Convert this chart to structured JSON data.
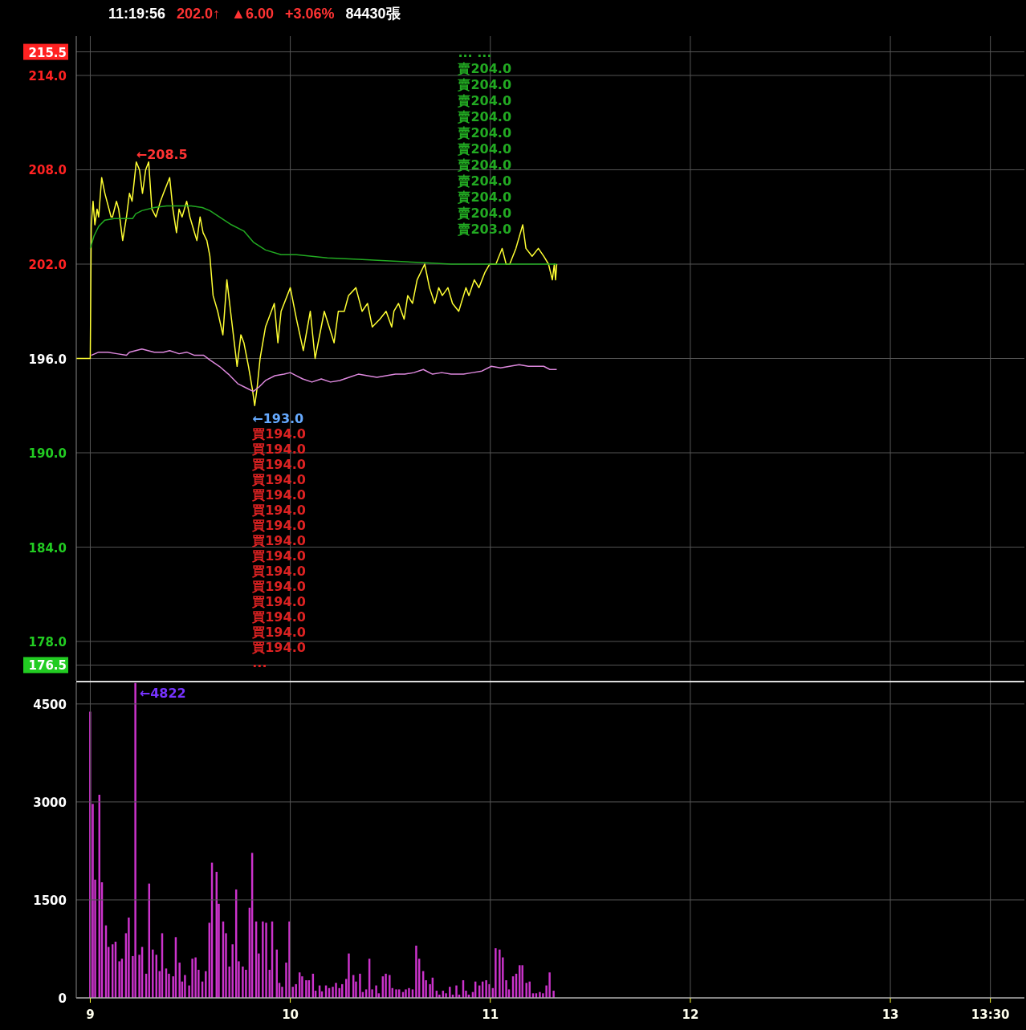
{
  "chart_data": [
    {
      "type": "line",
      "title": "11:19:56  202.0↑  ▲6.00  +3.06%  84430張",
      "xlim": [
        8.93,
        13.67
      ],
      "xticks": [
        9,
        10,
        11,
        12,
        13,
        {
          "value": 13.5,
          "label": null
        }
      ],
      "ylim": [
        175.5,
        216.5
      ],
      "yticks": [
        {
          "value": 176.5,
          "label": "176.5"
        },
        {
          "value": 178,
          "label": "178.0"
        },
        {
          "value": 184,
          "label": "184.0"
        },
        {
          "value": 190,
          "label": "190.0"
        },
        {
          "value": 196,
          "label": "196.0"
        },
        {
          "value": 202,
          "label": "202.0"
        },
        {
          "value": 208,
          "label": "208.0"
        },
        {
          "value": 214,
          "label": "214.0"
        },
        {
          "value": 215.5,
          "label": "215.5"
        }
      ],
      "tick_labels": "y",
      "grid": true,
      "series": [
        {
          "color": "#ffff33",
          "x": [
            8.93,
            9.0,
            9.005,
            9.014,
            9.023,
            9.034,
            9.042,
            9.057,
            9.073,
            9.104,
            9.111,
            9.131,
            9.142,
            9.162,
            9.181,
            9.196,
            9.209,
            9.23,
            9.246,
            9.261,
            9.277,
            9.292,
            9.308,
            9.328,
            9.351,
            9.366,
            9.397,
            9.413,
            9.431,
            9.444,
            9.459,
            9.482,
            9.498,
            9.521,
            9.533,
            9.549,
            9.564,
            9.583,
            9.598,
            9.614,
            9.637,
            9.663,
            9.683,
            9.706,
            9.734,
            9.753,
            9.768,
            9.791,
            9.811,
            9.822,
            9.833,
            9.849,
            9.876,
            9.92,
            9.938,
            9.954,
            10.0,
            10.031,
            10.065,
            10.1,
            10.124,
            10.17,
            10.219,
            10.24,
            10.27,
            10.291,
            10.328,
            10.359,
            10.386,
            10.41,
            10.448,
            10.479,
            10.507,
            10.518,
            10.541,
            10.569,
            10.587,
            10.611,
            10.634,
            10.672,
            10.696,
            10.722,
            10.742,
            10.76,
            10.788,
            10.811,
            10.842,
            10.878,
            10.893,
            10.92,
            10.943,
            10.974,
            10.997,
            11.028,
            11.059,
            11.079,
            11.097,
            11.128,
            11.162,
            11.178,
            11.209,
            11.24,
            11.267,
            11.291,
            11.31,
            11.32,
            11.326,
            11.332
          ],
          "values": [
            196.0,
            196.0,
            204.5,
            206.0,
            204.5,
            205.5,
            205.0,
            207.5,
            206.5,
            205.0,
            205.0,
            206.0,
            205.5,
            203.5,
            205.0,
            206.5,
            206.0,
            208.5,
            208.0,
            206.5,
            208.0,
            208.5,
            205.5,
            205.0,
            206.0,
            206.5,
            207.5,
            205.5,
            204.0,
            205.5,
            205.0,
            206.0,
            205.0,
            204.0,
            203.5,
            205.0,
            204.0,
            203.5,
            202.5,
            200.0,
            199.0,
            197.5,
            201.0,
            198.5,
            195.5,
            197.5,
            197.0,
            195.5,
            194.0,
            193.0,
            194.0,
            196.0,
            198.0,
            199.5,
            197.0,
            199.0,
            200.5,
            198.5,
            196.5,
            199.0,
            196.0,
            199.0,
            197.0,
            199.0,
            199.0,
            200.0,
            200.5,
            199.0,
            199.5,
            198.0,
            198.5,
            199.0,
            198.0,
            199.0,
            199.5,
            198.5,
            200.0,
            199.5,
            201.0,
            202.0,
            200.5,
            199.5,
            200.5,
            200.0,
            200.5,
            199.5,
            199.0,
            200.5,
            200.0,
            201.0,
            200.5,
            201.5,
            202.0,
            202.0,
            203.0,
            202.0,
            202.0,
            203.0,
            204.5,
            203.0,
            202.5,
            203.0,
            202.5,
            202.0,
            201.0,
            202.0,
            201.0,
            202.0
          ]
        },
        {
          "color": "#22aa22",
          "x": [
            9.0,
            9.019,
            9.042,
            9.073,
            9.119,
            9.181,
            9.212,
            9.227,
            9.258,
            9.32,
            9.382,
            9.444,
            9.505,
            9.56,
            9.598,
            9.645,
            9.706,
            9.768,
            9.815,
            9.876,
            9.954,
            10.031,
            10.185,
            10.34,
            10.495,
            10.649,
            10.804,
            11.005,
            11.332
          ],
          "values": [
            203.0,
            203.8,
            204.4,
            204.8,
            204.9,
            204.9,
            204.9,
            205.2,
            205.4,
            205.6,
            205.7,
            205.7,
            205.7,
            205.6,
            205.4,
            205.0,
            204.5,
            204.1,
            203.4,
            202.9,
            202.6,
            202.6,
            202.4,
            202.3,
            202.2,
            202.1,
            202.0,
            202.0,
            202.0
          ]
        },
        {
          "color": "#dd88dd",
          "x": [
            9.005,
            9.042,
            9.088,
            9.134,
            9.181,
            9.196,
            9.258,
            9.32,
            9.366,
            9.397,
            9.444,
            9.482,
            9.521,
            9.567,
            9.598,
            9.645,
            9.691,
            9.737,
            9.784,
            9.815,
            9.845,
            9.876,
            9.923,
            9.969,
            10.0,
            10.031,
            10.062,
            10.108,
            10.155,
            10.201,
            10.247,
            10.294,
            10.34,
            10.386,
            10.433,
            10.479,
            10.526,
            10.572,
            10.618,
            10.665,
            10.711,
            10.757,
            10.804,
            10.866,
            10.912,
            10.958,
            11.005,
            11.051,
            11.097,
            11.144,
            11.19,
            11.236,
            11.267,
            11.298,
            11.332
          ],
          "values": [
            196.2,
            196.4,
            196.4,
            196.3,
            196.2,
            196.4,
            196.6,
            196.4,
            196.4,
            196.5,
            196.3,
            196.4,
            196.2,
            196.2,
            195.9,
            195.5,
            195.0,
            194.4,
            194.1,
            193.9,
            194.2,
            194.6,
            194.9,
            195.0,
            195.1,
            194.9,
            194.7,
            194.5,
            194.7,
            194.5,
            194.6,
            194.8,
            195.0,
            194.9,
            194.8,
            194.9,
            195.0,
            195.0,
            195.1,
            195.3,
            195.0,
            195.1,
            195.0,
            195.0,
            195.1,
            195.2,
            195.5,
            195.4,
            195.5,
            195.6,
            195.5,
            195.5,
            195.5,
            195.3,
            195.3
          ]
        }
      ],
      "annotations": [
        {
          "text": "←208.5",
          "x": 9.23,
          "y": 208.5
        },
        {
          "text": "←193.0",
          "x": 9.822,
          "y": 193.0
        },
        "買194.0",
        "買194.0",
        "買194.0",
        "買194.0",
        "買194.0",
        "買194.0",
        "買194.0",
        "買194.0",
        "買194.0",
        "買194.0",
        "買194.0",
        "買194.0",
        "買194.0",
        "買194.0",
        "買194.0",
        "...",
        {
          "text": "賣203.0",
          "x": 11.059,
          "y": 203.0
        },
        "賣204.0",
        "賣204.0",
        "賣204.0",
        "賣204.0",
        "賣204.0",
        "賣204.0",
        "賣204.0",
        "賣204.0",
        "賣204.0",
        "賣204.0",
        "... ..."
      ]
    },
    {
      "type": "bar",
      "color": "#cc33cc",
      "xlim": [
        8.93,
        13.67
      ],
      "xticks": [
        9,
        10,
        11,
        12,
        13,
        {
          "value": 13.5,
          "label": "13:30"
        }
      ],
      "ylim": [
        0,
        4830
      ],
      "yticks": [
        0,
        1500,
        3000,
        4500
      ],
      "grid": true,
      "x": [
        9.0,
        9.013,
        9.025,
        9.046,
        9.059,
        9.079,
        9.092,
        9.112,
        9.127,
        9.146,
        9.159,
        9.179,
        9.193,
        9.213,
        9.226,
        9.246,
        9.26,
        9.28,
        9.295,
        9.313,
        9.331,
        9.347,
        9.36,
        9.38,
        9.394,
        9.415,
        9.428,
        9.447,
        9.46,
        9.474,
        9.495,
        9.511,
        9.527,
        9.542,
        9.561,
        9.578,
        9.596,
        9.609,
        9.632,
        9.643,
        9.665,
        9.679,
        9.696,
        9.712,
        9.73,
        9.743,
        9.763,
        9.779,
        9.797,
        9.81,
        9.83,
        9.843,
        9.863,
        9.88,
        9.897,
        9.91,
        9.933,
        9.946,
        9.96,
        9.98,
        9.996,
        10.013,
        10.029,
        10.047,
        10.06,
        10.08,
        10.094,
        10.114,
        10.127,
        10.147,
        10.159,
        10.179,
        10.195,
        10.213,
        10.229,
        10.246,
        10.26,
        10.28,
        10.293,
        10.316,
        10.329,
        10.349,
        10.363,
        10.38,
        10.396,
        10.41,
        10.43,
        10.443,
        10.463,
        10.478,
        10.497,
        10.511,
        10.53,
        10.545,
        10.564,
        10.578,
        10.594,
        10.612,
        10.63,
        10.645,
        10.665,
        10.679,
        10.699,
        10.712,
        10.732,
        10.746,
        10.764,
        10.779,
        10.798,
        10.813,
        10.831,
        10.845,
        10.865,
        10.879,
        10.893,
        10.913,
        10.926,
        10.946,
        10.962,
        10.98,
        10.996,
        11.013,
        11.027,
        11.047,
        11.063,
        11.08,
        11.094,
        11.114,
        11.13,
        11.147,
        11.161,
        11.181,
        11.197,
        11.214,
        11.23,
        11.248,
        11.264,
        11.281,
        11.297,
        11.317
      ],
      "values": [
        4380,
        2970,
        1810,
        3110,
        1770,
        1110,
        780,
        820,
        860,
        560,
        600,
        990,
        1230,
        640,
        4822,
        660,
        780,
        370,
        1750,
        740,
        660,
        410,
        990,
        450,
        370,
        330,
        930,
        540,
        250,
        350,
        190,
        600,
        620,
        430,
        250,
        410,
        1150,
        2070,
        1930,
        1440,
        1170,
        990,
        480,
        820,
        1660,
        560,
        480,
        430,
        1380,
        2220,
        1170,
        680,
        1170,
        1150,
        430,
        1170,
        740,
        230,
        170,
        540,
        1170,
        170,
        210,
        390,
        330,
        270,
        270,
        370,
        110,
        190,
        100,
        190,
        150,
        170,
        230,
        150,
        210,
        290,
        680,
        350,
        250,
        370,
        90,
        130,
        600,
        130,
        190,
        70,
        330,
        370,
        350,
        150,
        130,
        130,
        90,
        130,
        150,
        130,
        800,
        600,
        410,
        270,
        210,
        310,
        110,
        50,
        110,
        70,
        170,
        50,
        190,
        50,
        270,
        110,
        50,
        90,
        250,
        190,
        250,
        270,
        210,
        150,
        760,
        740,
        620,
        270,
        130,
        330,
        370,
        500,
        500,
        230,
        250,
        70,
        70,
        90,
        70,
        190,
        390,
        110
      ],
      "annotations": [
        {
          "text": "←4822",
          "x": 9.226,
          "y": 4822
        }
      ]
    }
  ]
}
